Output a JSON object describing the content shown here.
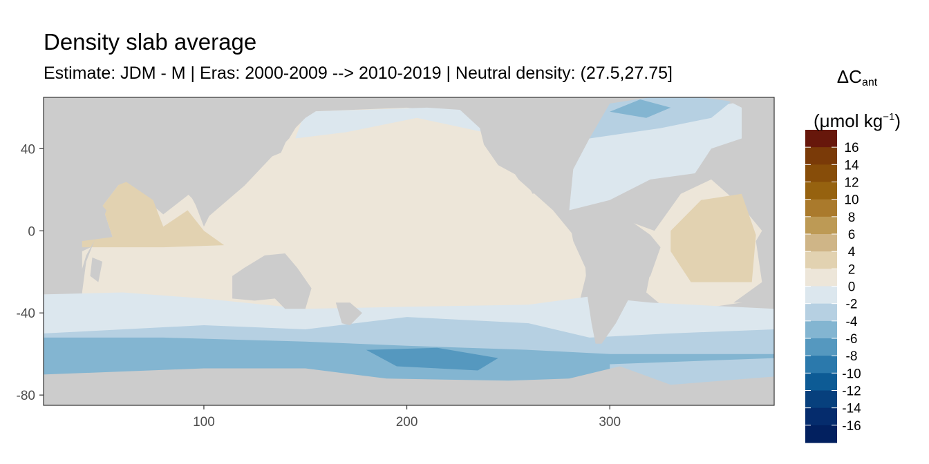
{
  "title": "Density slab average",
  "subtitle": "Estimate: JDM - M | Eras: 2000-2009 --> 2010-2019 | Neutral density: (27.5,27.75]",
  "chart_data": {
    "type": "heatmap",
    "xlabel": "",
    "ylabel": "",
    "xlim": [
      21,
      381
    ],
    "ylim": [
      -85,
      65
    ],
    "x_ticks": [
      100,
      200,
      300
    ],
    "y_ticks": [
      40,
      0,
      -40,
      -80
    ],
    "grid": false,
    "legend": {
      "position": "right",
      "title_symbol": "ΔC",
      "title_subscript": "ant",
      "unit_prefix": "(μmol kg",
      "unit_superscript": "−1",
      "unit_suffix": ")",
      "labels": [
        "16",
        "14",
        "12",
        "10",
        "8",
        "6",
        "4",
        "2",
        "0",
        "-2",
        "-4",
        "-6",
        "-8",
        "-10",
        "-12",
        "-14",
        "-16"
      ],
      "colors": [
        "#67170b",
        "#7a3a08",
        "#874d09",
        "#96620f",
        "#aa7a2c",
        "#bd9a55",
        "#cfb587",
        "#e2d2b1",
        "#ede6d9",
        "#dce7ee",
        "#b6d0e2",
        "#83b5d1",
        "#5598bf",
        "#2b79ac",
        "#0d5b95",
        "#07407d",
        "#052c6d",
        "#02205f"
      ]
    },
    "land_color": "#cccccc",
    "cell_colors": {
      "very_light_tan": "#ede6d9",
      "light_tan": "#e2d2b1",
      "very_light_blue": "#dce7ee",
      "light_blue": "#b6d0e2",
      "medium_blue": "#83b5d1",
      "blue": "#5598bf"
    }
  }
}
